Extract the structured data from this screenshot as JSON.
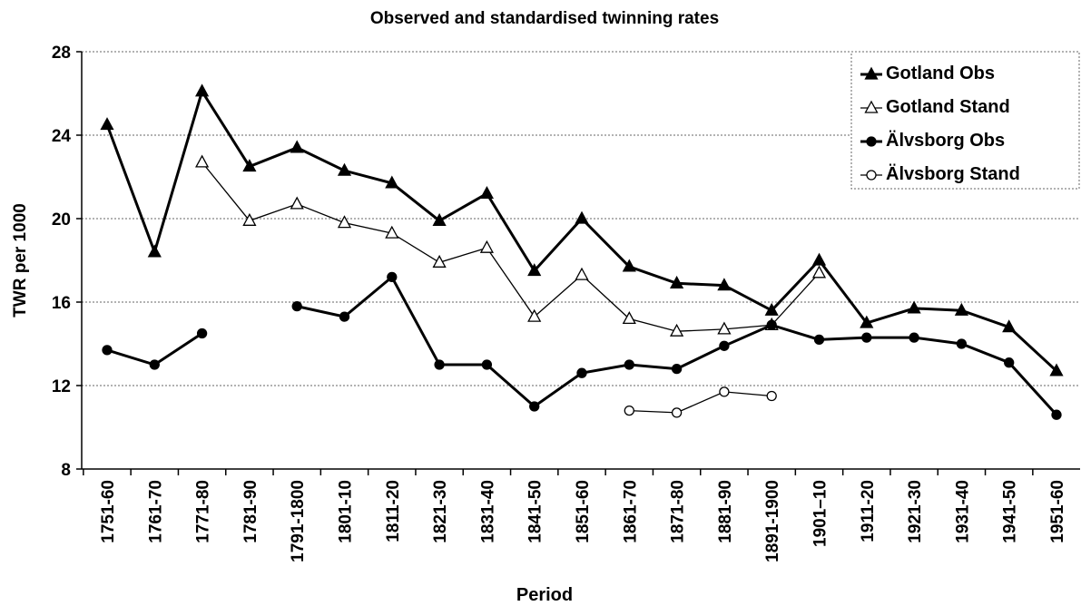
{
  "chart_data": {
    "type": "line",
    "title": "Observed and standardised twinning rates",
    "x_label": "Period",
    "y_label": "TWR per 1000",
    "categories": [
      "1751-60",
      "1761-70",
      "1771-80",
      "1781-90",
      "1791-1800",
      "1801-10",
      "1811-20",
      "1821-30",
      "1831-40",
      "1841-50",
      "1851-60",
      "1861-70",
      "1871-80",
      "1881-90",
      "1891-1900",
      "1901–10",
      "1911-20",
      "1921-30",
      "1931-40",
      "1941-50",
      "1951-60"
    ],
    "ylim": [
      8,
      28
    ],
    "yticks": [
      8,
      12,
      16,
      20,
      24,
      28
    ],
    "grid": true,
    "legend": "top-right",
    "series": [
      {
        "name": "Gotland Obs",
        "color": "#000000",
        "marker": "triangle",
        "filled": true,
        "width": 3,
        "values": [
          24.5,
          18.4,
          26.1,
          22.5,
          23.4,
          22.3,
          21.7,
          19.9,
          21.2,
          17.5,
          20.0,
          17.7,
          16.9,
          16.8,
          15.6,
          18.0,
          15.0,
          15.7,
          15.6,
          14.8,
          12.7
        ]
      },
      {
        "name": "Gotland Stand",
        "color": "#000000",
        "marker": "triangle",
        "filled": false,
        "width": 1.3,
        "values": [
          null,
          null,
          22.7,
          19.9,
          20.7,
          19.8,
          19.3,
          17.9,
          18.6,
          15.3,
          17.3,
          15.2,
          14.6,
          14.7,
          14.9,
          17.4,
          null,
          null,
          null,
          null,
          null
        ]
      },
      {
        "name": "Älvsborg Obs",
        "color": "#000000",
        "marker": "circle",
        "filled": true,
        "width": 3,
        "values": [
          13.7,
          13.0,
          14.5,
          null,
          15.8,
          15.3,
          17.2,
          13.0,
          13.0,
          11.0,
          12.6,
          13.0,
          12.8,
          13.9,
          14.9,
          14.2,
          14.3,
          14.3,
          14.0,
          13.1,
          10.6
        ]
      },
      {
        "name": "Älvsborg Stand",
        "color": "#000000",
        "marker": "circle",
        "filled": false,
        "width": 1.3,
        "values": [
          null,
          null,
          null,
          null,
          null,
          null,
          null,
          null,
          null,
          null,
          null,
          10.8,
          10.7,
          11.7,
          11.5,
          null,
          null,
          null,
          null,
          null,
          null
        ]
      }
    ]
  }
}
